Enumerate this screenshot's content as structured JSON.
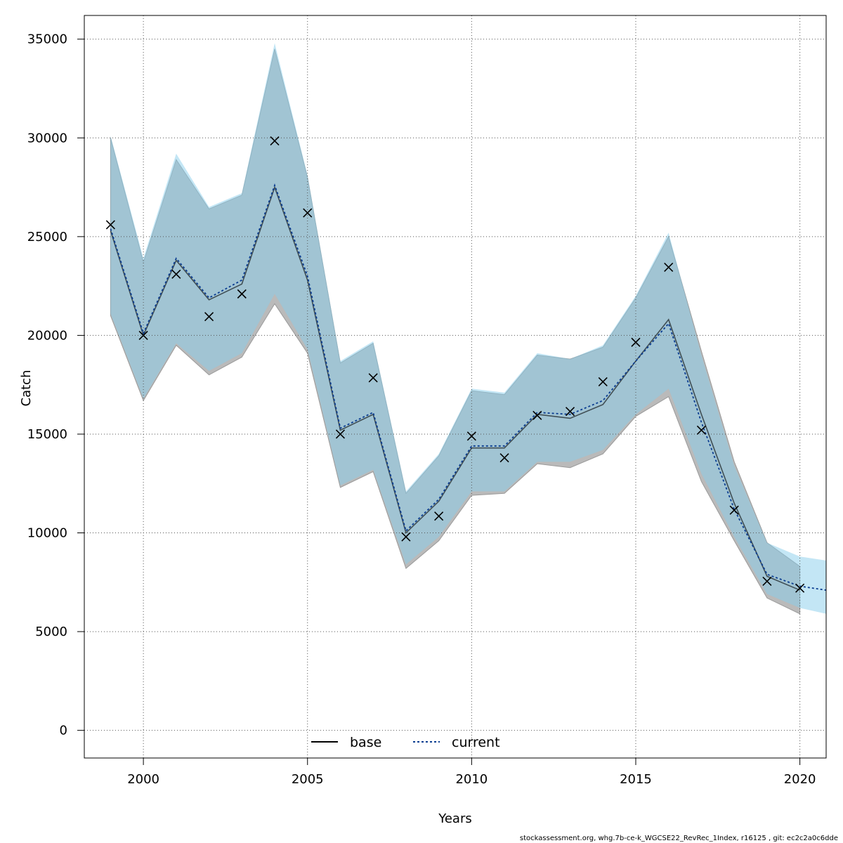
{
  "chart_data": {
    "type": "line",
    "xlabel": "Years",
    "ylabel": "Catch",
    "xlim": [
      1998.2,
      2020.8
    ],
    "ylim": [
      -1400,
      36200
    ],
    "x_ticks": [
      2000,
      2005,
      2010,
      2015,
      2020
    ],
    "y_ticks": [
      0,
      5000,
      10000,
      15000,
      20000,
      25000,
      30000,
      35000
    ],
    "grid": true,
    "legend_position": "bottom-center",
    "colors": {
      "base_band": "#b3b3b3",
      "current_band": "#87ceeb",
      "base_line": "#000000",
      "current_line": "#0b3d91",
      "observed_marker": "#000000",
      "grid": "#555555"
    },
    "series": [
      {
        "name": "base",
        "x": [
          1999,
          2000,
          2001,
          2002,
          2003,
          2004,
          2005,
          2006,
          2007,
          2008,
          2009,
          2010,
          2011,
          2012,
          2013,
          2014,
          2015,
          2016,
          2017,
          2018,
          2019,
          2020
        ],
        "values": [
          25300,
          20000,
          23800,
          21800,
          22600,
          27500,
          22800,
          15200,
          16000,
          10000,
          11600,
          14300,
          14300,
          16000,
          15800,
          16500,
          18700,
          20800,
          16000,
          11500,
          7800,
          7100
        ],
        "lower": [
          21000,
          16700,
          19500,
          18000,
          18900,
          21600,
          19100,
          12300,
          13100,
          8200,
          9600,
          11900,
          12000,
          13500,
          13300,
          14000,
          15900,
          16900,
          12600,
          9600,
          6700,
          5900
        ],
        "upper": [
          30000,
          23700,
          28900,
          26400,
          27100,
          34500,
          28000,
          18600,
          19600,
          12000,
          13900,
          17200,
          17000,
          19000,
          18800,
          19400,
          21900,
          25000,
          19200,
          13600,
          9500,
          8300
        ]
      },
      {
        "name": "current",
        "x": [
          1999,
          2000,
          2001,
          2002,
          2003,
          2004,
          2005,
          2006,
          2007,
          2008,
          2009,
          2010,
          2011,
          2012,
          2013,
          2014,
          2015,
          2016,
          2017,
          2018,
          2019,
          2020,
          2020.8
        ],
        "values": [
          25400,
          20100,
          23900,
          21900,
          22800,
          27600,
          23000,
          15300,
          16100,
          10100,
          11700,
          14400,
          14400,
          16100,
          16000,
          16700,
          18700,
          20600,
          15600,
          11200,
          7900,
          7300,
          7100
        ],
        "lower": [
          21100,
          16800,
          19600,
          18200,
          19100,
          22100,
          19300,
          12400,
          13200,
          8400,
          9800,
          12100,
          12100,
          13600,
          13600,
          14200,
          16000,
          17300,
          13000,
          9800,
          6900,
          6200,
          5900
        ],
        "upper": [
          30100,
          23900,
          29200,
          26500,
          27200,
          34800,
          28100,
          18700,
          19700,
          12100,
          14000,
          17300,
          17100,
          19100,
          18800,
          19500,
          22000,
          25200,
          19000,
          13400,
          9500,
          8800,
          8600
        ]
      }
    ],
    "observed": {
      "x": [
        1999,
        2000,
        2001,
        2002,
        2003,
        2004,
        2005,
        2006,
        2007,
        2008,
        2009,
        2010,
        2011,
        2012,
        2013,
        2014,
        2015,
        2016,
        2017,
        2018,
        2019,
        2020
      ],
      "values": [
        25600,
        20000,
        23100,
        20950,
        22100,
        29850,
        26200,
        15000,
        17850,
        9800,
        10850,
        14900,
        13800,
        15950,
        16150,
        17650,
        19650,
        23450,
        15200,
        11150,
        7550,
        7200
      ]
    },
    "footer": "stockassessment.org, whg.7b-ce-k_WGCSE22_RevRec_1Index, r16125 , git: ec2c2a0c6dde"
  }
}
